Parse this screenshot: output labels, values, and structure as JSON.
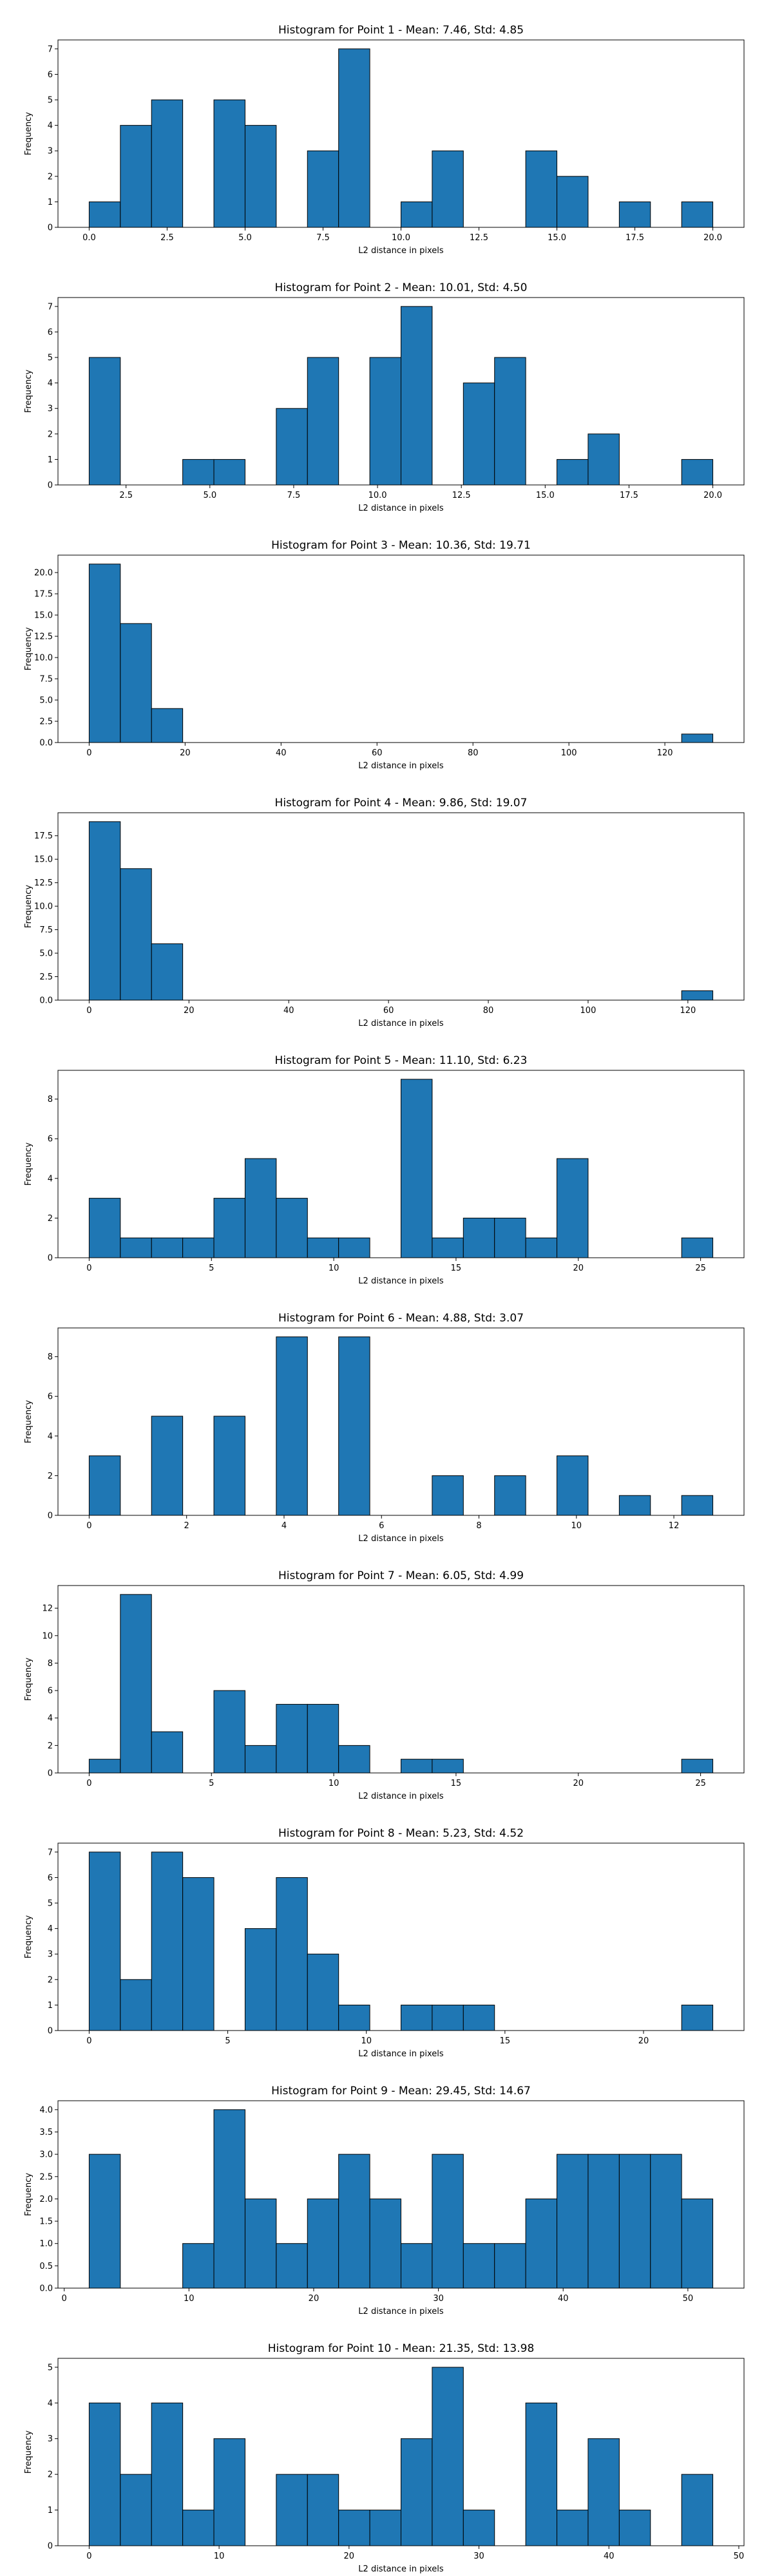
{
  "chart_data": [
    {
      "type": "histogram",
      "title": "Histogram for Point 1 - Mean: 7.46, Std: 4.85",
      "xlabel": "L2 distance in pixels",
      "ylabel": "Frequency",
      "color": "#1f77b4",
      "edgecolor": "#000000",
      "bins": [
        0,
        1,
        2,
        3,
        4,
        5,
        6,
        7,
        8,
        9,
        10,
        11,
        12,
        13,
        14,
        15,
        16,
        17,
        18,
        19,
        20
      ],
      "values": [
        1,
        4,
        5,
        0,
        5,
        4,
        0,
        3,
        7,
        0,
        1,
        3,
        0,
        0,
        3,
        2,
        0,
        1,
        0,
        1
      ],
      "xlim": [
        -1,
        21
      ],
      "xticks": [
        {
          "value": 0,
          "label": "0.0"
        },
        2.5,
        {
          "value": 5,
          "label": "5.0"
        },
        7.5,
        {
          "value": 10,
          "label": "10.0"
        },
        12.5,
        {
          "value": 15,
          "label": "15.0"
        },
        17.5,
        {
          "value": 20,
          "label": "20.0"
        }
      ],
      "ylim": [
        0,
        7.35
      ],
      "yticks": [
        0,
        1,
        2,
        3,
        4,
        5,
        6,
        7
      ]
    },
    {
      "type": "histogram",
      "title": "Histogram for Point 2 - Mean: 10.01, Std: 4.50",
      "xlabel": "L2 distance in pixels",
      "ylabel": "Frequency",
      "color": "#1f77b4",
      "edgecolor": "#000000",
      "bins": [
        1.4,
        2.33,
        3.26,
        4.19,
        5.12,
        6.05,
        6.98,
        7.91,
        8.84,
        9.77,
        10.7,
        11.63,
        12.56,
        13.49,
        14.42,
        15.35,
        16.28,
        17.21,
        18.14,
        19.07,
        20.0
      ],
      "values": [
        5,
        0,
        0,
        1,
        1,
        0,
        3,
        5,
        0,
        5,
        7,
        0,
        4,
        5,
        0,
        1,
        2,
        0,
        0,
        1
      ],
      "xlim": [
        0.47,
        20.93
      ],
      "xticks": [
        2.5,
        {
          "value": 5,
          "label": "5.0"
        },
        7.5,
        {
          "value": 10,
          "label": "10.0"
        },
        12.5,
        {
          "value": 15,
          "label": "15.0"
        },
        17.5,
        {
          "value": 20,
          "label": "20.0"
        }
      ],
      "ylim": [
        0,
        7.35
      ],
      "yticks": [
        0,
        1,
        2,
        3,
        4,
        5,
        6,
        7
      ]
    },
    {
      "type": "histogram",
      "title": "Histogram for Point 3 - Mean: 10.36, Std: 19.71",
      "xlabel": "L2 distance in pixels",
      "ylabel": "Frequency",
      "color": "#1f77b4",
      "edgecolor": "#000000",
      "bins": [
        0,
        6.5,
        13,
        19.5,
        26,
        32.5,
        39,
        45.5,
        52,
        58.5,
        65,
        71.5,
        78,
        84.5,
        91,
        97.5,
        104,
        110.5,
        117,
        123.5,
        130
      ],
      "values": [
        21,
        14,
        4,
        0,
        0,
        0,
        0,
        0,
        0,
        0,
        0,
        0,
        0,
        0,
        0,
        0,
        0,
        0,
        0,
        1
      ],
      "xlim": [
        -6.5,
        136.5
      ],
      "xticks": [
        0,
        20,
        40,
        60,
        80,
        100,
        120
      ],
      "ylim": [
        0,
        22.05
      ],
      "yticks": [
        {
          "value": 0,
          "label": "0.0"
        },
        2.5,
        {
          "value": 5,
          "label": "5.0"
        },
        7.5,
        {
          "value": 10,
          "label": "10.0"
        },
        12.5,
        {
          "value": 15,
          "label": "15.0"
        },
        17.5,
        {
          "value": 20,
          "label": "20.0"
        }
      ]
    },
    {
      "type": "histogram",
      "title": "Histogram for Point 4 - Mean: 9.86, Std: 19.07",
      "xlabel": "L2 distance in pixels",
      "ylabel": "Frequency",
      "color": "#1f77b4",
      "edgecolor": "#000000",
      "bins": [
        0,
        6.25,
        12.5,
        18.75,
        25,
        31.25,
        37.5,
        43.75,
        50,
        56.25,
        62.5,
        68.75,
        75,
        81.25,
        87.5,
        93.75,
        100,
        106.25,
        112.5,
        118.75,
        125
      ],
      "values": [
        19,
        14,
        6,
        0,
        0,
        0,
        0,
        0,
        0,
        0,
        0,
        0,
        0,
        0,
        0,
        0,
        0,
        0,
        0,
        1
      ],
      "xlim": [
        -6.25,
        131.25
      ],
      "xticks": [
        0,
        20,
        40,
        60,
        80,
        100,
        120
      ],
      "ylim": [
        0,
        19.95
      ],
      "yticks": [
        {
          "value": 0,
          "label": "0.0"
        },
        2.5,
        {
          "value": 5,
          "label": "5.0"
        },
        7.5,
        {
          "value": 10,
          "label": "10.0"
        },
        12.5,
        {
          "value": 15,
          "label": "15.0"
        },
        17.5
      ]
    },
    {
      "type": "histogram",
      "title": "Histogram for Point 5 - Mean: 11.10, Std: 6.23",
      "xlabel": "L2 distance in pixels",
      "ylabel": "Frequency",
      "color": "#1f77b4",
      "edgecolor": "#000000",
      "bins": [
        0,
        1.275,
        2.55,
        3.825,
        5.1,
        6.375,
        7.65,
        8.925,
        10.2,
        11.475,
        12.75,
        14.025,
        15.3,
        16.575,
        17.85,
        19.125,
        20.4,
        21.675,
        22.95,
        24.225,
        25.5
      ],
      "values": [
        3,
        1,
        1,
        1,
        3,
        5,
        3,
        1,
        1,
        0,
        9,
        1,
        2,
        2,
        1,
        5,
        0,
        0,
        0,
        1
      ],
      "xlim": [
        -1.275,
        26.775
      ],
      "xticks": [
        0,
        5,
        10,
        15,
        20,
        25
      ],
      "ylim": [
        0,
        9.45
      ],
      "yticks": [
        0,
        2,
        4,
        6,
        8
      ]
    },
    {
      "type": "histogram",
      "title": "Histogram for Point 6 - Mean: 4.88, Std: 3.07",
      "xlabel": "L2 distance in pixels",
      "ylabel": "Frequency",
      "color": "#1f77b4",
      "edgecolor": "#000000",
      "bins": [
        0,
        0.64,
        1.28,
        1.92,
        2.56,
        3.2,
        3.84,
        4.48,
        5.12,
        5.76,
        6.4,
        7.04,
        7.68,
        8.32,
        8.96,
        9.6,
        10.24,
        10.88,
        11.52,
        12.16,
        12.8
      ],
      "values": [
        3,
        0,
        5,
        0,
        5,
        0,
        9,
        0,
        9,
        0,
        0,
        2,
        0,
        2,
        0,
        3,
        0,
        1,
        0,
        1
      ],
      "xlim": [
        -0.64,
        13.44
      ],
      "xticks": [
        0,
        2,
        4,
        6,
        8,
        10,
        12
      ],
      "ylim": [
        0,
        9.45
      ],
      "yticks": [
        0,
        2,
        4,
        6,
        8
      ]
    },
    {
      "type": "histogram",
      "title": "Histogram for Point 7 - Mean: 6.05, Std: 4.99",
      "xlabel": "L2 distance in pixels",
      "ylabel": "Frequency",
      "color": "#1f77b4",
      "edgecolor": "#000000",
      "bins": [
        0,
        1.275,
        2.55,
        3.825,
        5.1,
        6.375,
        7.65,
        8.925,
        10.2,
        11.475,
        12.75,
        14.025,
        15.3,
        16.575,
        17.85,
        19.125,
        20.4,
        21.675,
        22.95,
        24.225,
        25.5
      ],
      "values": [
        1,
        13,
        3,
        0,
        6,
        2,
        5,
        5,
        2,
        0,
        1,
        1,
        0,
        0,
        0,
        0,
        0,
        0,
        0,
        1
      ],
      "xlim": [
        -1.275,
        26.775
      ],
      "xticks": [
        0,
        5,
        10,
        15,
        20,
        25
      ],
      "ylim": [
        0,
        13.65
      ],
      "yticks": [
        0,
        2,
        4,
        6,
        8,
        10,
        12
      ]
    },
    {
      "type": "histogram",
      "title": "Histogram for Point 8 - Mean: 5.23, Std: 4.52",
      "xlabel": "L2 distance in pixels",
      "ylabel": "Frequency",
      "color": "#1f77b4",
      "edgecolor": "#000000",
      "bins": [
        0,
        1.125,
        2.25,
        3.375,
        4.5,
        5.625,
        6.75,
        7.875,
        9,
        10.125,
        11.25,
        12.375,
        13.5,
        14.625,
        15.75,
        16.875,
        18,
        19.125,
        20.25,
        21.375,
        22.5
      ],
      "values": [
        7,
        2,
        7,
        6,
        0,
        4,
        6,
        3,
        1,
        0,
        1,
        1,
        1,
        0,
        0,
        0,
        0,
        0,
        0,
        1
      ],
      "xlim": [
        -1.125,
        23.625
      ],
      "xticks": [
        0,
        5,
        10,
        15,
        20
      ],
      "ylim": [
        0,
        7.35
      ],
      "yticks": [
        0,
        1,
        2,
        3,
        4,
        5,
        6,
        7
      ]
    },
    {
      "type": "histogram",
      "title": "Histogram for Point 9 - Mean: 29.45, Std: 14.67",
      "xlabel": "L2 distance in pixels",
      "ylabel": "Frequency",
      "color": "#1f77b4",
      "edgecolor": "#000000",
      "bins": [
        2,
        4.5,
        7,
        9.5,
        12,
        14.5,
        17,
        19.5,
        22,
        24.5,
        27,
        29.5,
        32,
        34.5,
        37,
        39.5,
        42,
        44.5,
        47,
        49.5,
        52
      ],
      "values": [
        3,
        0,
        0,
        1,
        4,
        2,
        1,
        2,
        3,
        2,
        1,
        3,
        1,
        1,
        2,
        3,
        3,
        3,
        3,
        2
      ],
      "xlim": [
        -0.5,
        54.5
      ],
      "xticks": [
        0,
        10,
        20,
        30,
        40,
        50
      ],
      "ylim": [
        0,
        4.2
      ],
      "yticks": [
        {
          "value": 0,
          "label": "0.0"
        },
        0.5,
        {
          "value": 1,
          "label": "1.0"
        },
        1.5,
        {
          "value": 2,
          "label": "2.0"
        },
        2.5,
        {
          "value": 3,
          "label": "3.0"
        },
        3.5,
        {
          "value": 4,
          "label": "4.0"
        }
      ]
    },
    {
      "type": "histogram",
      "title": "Histogram for Point 10 - Mean: 21.35, Std: 13.98",
      "xlabel": "L2 distance in pixels",
      "ylabel": "Frequency",
      "color": "#1f77b4",
      "edgecolor": "#000000",
      "bins": [
        0,
        2.4,
        4.8,
        7.2,
        9.6,
        12,
        14.4,
        16.8,
        19.2,
        21.6,
        24,
        26.4,
        28.8,
        31.2,
        33.6,
        36,
        38.4,
        40.8,
        43.2,
        45.6,
        48
      ],
      "values": [
        4,
        2,
        4,
        1,
        3,
        0,
        2,
        2,
        1,
        1,
        3,
        5,
        1,
        0,
        4,
        1,
        3,
        1,
        0,
        2
      ],
      "xlim": [
        -2.4,
        50.4
      ],
      "xticks": [
        0,
        10,
        20,
        30,
        40,
        50
      ],
      "ylim": [
        0,
        5.25
      ],
      "yticks": [
        0,
        1,
        2,
        3,
        4,
        5
      ]
    }
  ]
}
